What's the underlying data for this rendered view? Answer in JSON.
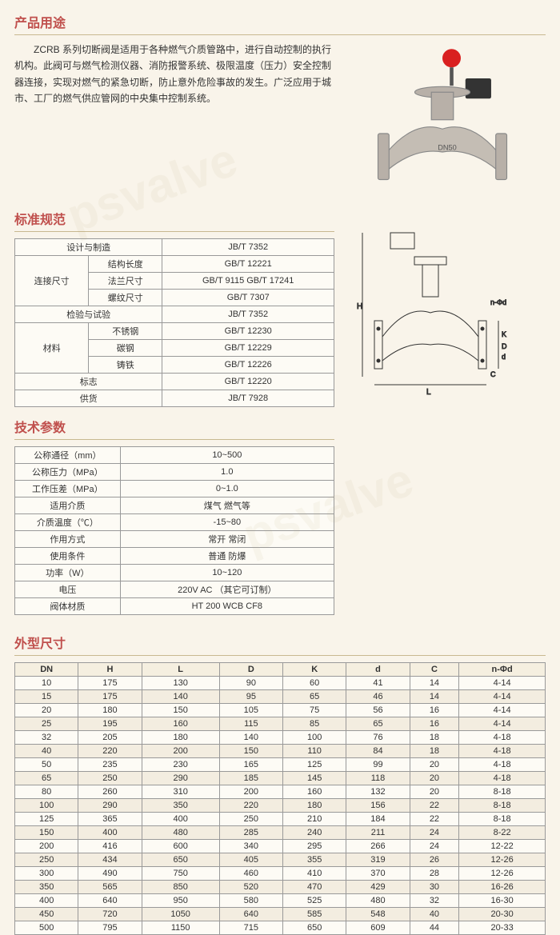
{
  "headings": {
    "usage": "产品用途",
    "standard": "标准规范",
    "tech": "技术参数",
    "dims": "外型尺寸"
  },
  "intro": "ZCRB 系列切断阀是适用于各种燃气介质管路中，进行自动控制的执行机构。此阀可与燃气检测仪器、消防报警系统、极限温度（压力）安全控制器连接，实现对燃气的紧急切断，防止意外危险事故的发生。广泛应用于城市、工厂的燃气供应管网的中央集中控制系统。",
  "spec": {
    "design": {
      "label": "设计与制造",
      "value": "JB/T 7352"
    },
    "conn": {
      "label": "连接尺寸",
      "rows": [
        {
          "l": "结构长度",
          "v": "GB/T 12221"
        },
        {
          "l": "法兰尺寸",
          "v": "GB/T 9115  GB/T 17241"
        },
        {
          "l": "螺纹尺寸",
          "v": "GB/T 7307"
        }
      ]
    },
    "test": {
      "label": "检验与试验",
      "value": "JB/T 7352"
    },
    "material": {
      "label": "材料",
      "rows": [
        {
          "l": "不锈钢",
          "v": "GB/T 12230"
        },
        {
          "l": "碳钢",
          "v": "GB/T 12229"
        },
        {
          "l": "铸铁",
          "v": "GB/T 12226"
        }
      ]
    },
    "mark": {
      "label": "标志",
      "value": "GB/T 12220"
    },
    "supply": {
      "label": "供货",
      "value": "JB/T 7928"
    }
  },
  "tech": [
    {
      "l": "公称通径（mm）",
      "v": "10~500"
    },
    {
      "l": "公称压力（MPa）",
      "v": "1.0"
    },
    {
      "l": "工作压差（MPa）",
      "v": "0~1.0"
    },
    {
      "l": "适用介质",
      "v": "煤气 燃气等"
    },
    {
      "l": "介质温度（℃）",
      "v": "-15~80"
    },
    {
      "l": "作用方式",
      "v": "常开  常闭"
    },
    {
      "l": "使用条件",
      "v": "普通  防爆"
    },
    {
      "l": "功率（W）",
      "v": "10~120"
    },
    {
      "l": "电压",
      "v": "220V AC  （其它可订制）"
    },
    {
      "l": "阀体材质",
      "v": "HT 200 WCB  CF8"
    }
  ],
  "dims": {
    "headers": [
      "DN",
      "H",
      "L",
      "D",
      "K",
      "d",
      "C",
      "n-Φd"
    ],
    "rows": [
      [
        "10",
        "175",
        "130",
        "90",
        "60",
        "41",
        "14",
        "4-14"
      ],
      [
        "15",
        "175",
        "140",
        "95",
        "65",
        "46",
        "14",
        "4-14"
      ],
      [
        "20",
        "180",
        "150",
        "105",
        "75",
        "56",
        "16",
        "4-14"
      ],
      [
        "25",
        "195",
        "160",
        "115",
        "85",
        "65",
        "16",
        "4-14"
      ],
      [
        "32",
        "205",
        "180",
        "140",
        "100",
        "76",
        "18",
        "4-18"
      ],
      [
        "40",
        "220",
        "200",
        "150",
        "110",
        "84",
        "18",
        "4-18"
      ],
      [
        "50",
        "235",
        "230",
        "165",
        "125",
        "99",
        "20",
        "4-18"
      ],
      [
        "65",
        "250",
        "290",
        "185",
        "145",
        "118",
        "20",
        "4-18"
      ],
      [
        "80",
        "260",
        "310",
        "200",
        "160",
        "132",
        "20",
        "8-18"
      ],
      [
        "100",
        "290",
        "350",
        "220",
        "180",
        "156",
        "22",
        "8-18"
      ],
      [
        "125",
        "365",
        "400",
        "250",
        "210",
        "184",
        "22",
        "8-18"
      ],
      [
        "150",
        "400",
        "480",
        "285",
        "240",
        "211",
        "24",
        "8-22"
      ],
      [
        "200",
        "416",
        "600",
        "340",
        "295",
        "266",
        "24",
        "12-22"
      ],
      [
        "250",
        "434",
        "650",
        "405",
        "355",
        "319",
        "26",
        "12-26"
      ],
      [
        "300",
        "490",
        "750",
        "460",
        "410",
        "370",
        "28",
        "12-26"
      ],
      [
        "350",
        "565",
        "850",
        "520",
        "470",
        "429",
        "30",
        "16-26"
      ],
      [
        "400",
        "640",
        "950",
        "580",
        "525",
        "480",
        "32",
        "16-30"
      ],
      [
        "450",
        "720",
        "1050",
        "640",
        "585",
        "548",
        "40",
        "20-30"
      ],
      [
        "500",
        "795",
        "1150",
        "715",
        "650",
        "609",
        "44",
        "20-33"
      ]
    ]
  },
  "colors": {
    "heading": "#c0504d",
    "bg": "#f9f4ea",
    "border": "#999999",
    "valve_body": "#b8b0a8",
    "valve_knob": "#d92020"
  }
}
